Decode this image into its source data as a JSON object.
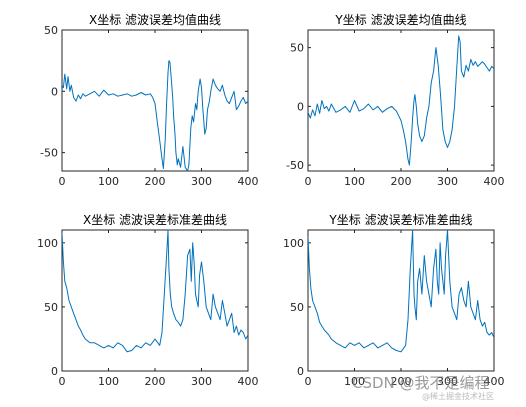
{
  "chart_data": [
    {
      "type": "line",
      "title": "X坐标 滤波误差均值曲线",
      "xlim": [
        0,
        400
      ],
      "ylim": [
        -65,
        50
      ],
      "xticks": [
        0,
        100,
        200,
        300,
        400
      ],
      "yticks": [
        -50,
        0,
        50
      ],
      "line_color": "#0072BD",
      "series": [
        {
          "x": [
            0,
            3,
            6,
            10,
            13,
            17,
            20,
            25,
            30,
            35,
            40,
            45,
            50,
            60,
            70,
            80,
            90,
            100,
            110,
            120,
            130,
            140,
            150,
            160,
            170,
            180,
            190,
            195,
            200,
            205,
            210,
            215,
            218,
            222,
            225,
            228,
            230,
            232,
            235,
            238,
            240,
            243,
            245,
            248,
            250,
            255,
            260,
            265,
            270,
            273,
            277,
            280,
            283,
            287,
            290,
            293,
            297,
            300,
            303,
            307,
            310,
            313,
            317,
            320,
            325,
            330,
            335,
            340,
            345,
            350,
            355,
            360,
            365,
            370,
            375,
            380,
            385,
            390,
            395,
            400
          ],
          "y": [
            5,
            3,
            14,
            2,
            12,
            0,
            5,
            -5,
            -8,
            -3,
            -6,
            -2,
            -4,
            -2,
            0,
            -4,
            1,
            -3,
            -2,
            -4,
            -3,
            -2,
            -4,
            -3,
            -1,
            -3,
            -2,
            -5,
            -10,
            -25,
            -40,
            -55,
            -63,
            -40,
            -10,
            15,
            25,
            24,
            10,
            -5,
            -20,
            -35,
            -50,
            -60,
            -55,
            -62,
            -45,
            -62,
            -65,
            -60,
            -30,
            -20,
            -25,
            -10,
            -15,
            0,
            10,
            3,
            -15,
            -35,
            -30,
            -15,
            -8,
            0,
            10,
            5,
            2,
            0,
            5,
            -3,
            -8,
            -10,
            -5,
            0,
            -15,
            -12,
            -8,
            -5,
            -10,
            -8
          ]
        }
      ]
    },
    {
      "type": "line",
      "title": "Y坐标 滤波误差均值曲线",
      "xlim": [
        0,
        400
      ],
      "ylim": [
        -55,
        65
      ],
      "xticks": [
        0,
        100,
        200,
        300,
        400
      ],
      "yticks": [
        -50,
        0,
        50
      ],
      "line_color": "#0072BD",
      "series": [
        {
          "x": [
            0,
            5,
            10,
            15,
            20,
            25,
            30,
            35,
            40,
            45,
            50,
            60,
            70,
            80,
            90,
            100,
            110,
            120,
            130,
            140,
            150,
            160,
            170,
            180,
            190,
            195,
            200,
            205,
            210,
            215,
            218,
            222,
            225,
            228,
            230,
            233,
            236,
            240,
            245,
            250,
            255,
            260,
            265,
            270,
            275,
            280,
            285,
            290,
            295,
            300,
            305,
            310,
            315,
            318,
            321,
            324,
            327,
            330,
            335,
            340,
            345,
            350,
            355,
            360,
            365,
            370,
            375,
            380,
            385,
            390,
            395,
            400
          ],
          "y": [
            -5,
            -10,
            -3,
            -8,
            2,
            -6,
            5,
            -2,
            0,
            -4,
            2,
            -5,
            -3,
            0,
            -5,
            5,
            -4,
            -2,
            2,
            -3,
            0,
            -5,
            -2,
            0,
            -4,
            -8,
            -12,
            -20,
            -30,
            -45,
            -50,
            -30,
            -10,
            5,
            10,
            0,
            -15,
            -25,
            -30,
            -25,
            -10,
            0,
            20,
            30,
            50,
            35,
            10,
            -20,
            -30,
            -35,
            -30,
            -20,
            0,
            20,
            40,
            60,
            55,
            30,
            25,
            35,
            30,
            40,
            35,
            38,
            34,
            36,
            38,
            36,
            33,
            30,
            34,
            32
          ]
        }
      ]
    },
    {
      "type": "line",
      "title": "X坐标 滤波误差标准差曲线",
      "xlim": [
        0,
        400
      ],
      "ylim": [
        0,
        110
      ],
      "xticks": [
        0,
        100,
        200,
        300,
        400
      ],
      "yticks": [
        0,
        50,
        100
      ],
      "line_color": "#0072BD",
      "series": [
        {
          "x": [
            0,
            3,
            6,
            10,
            15,
            20,
            25,
            30,
            35,
            40,
            45,
            50,
            60,
            70,
            80,
            90,
            100,
            110,
            120,
            130,
            140,
            150,
            160,
            170,
            180,
            190,
            200,
            210,
            215,
            220,
            225,
            228,
            230,
            233,
            236,
            240,
            245,
            250,
            255,
            260,
            265,
            270,
            275,
            278,
            281,
            284,
            287,
            290,
            293,
            296,
            300,
            305,
            310,
            315,
            320,
            325,
            330,
            335,
            340,
            345,
            350,
            355,
            360,
            365,
            370,
            375,
            380,
            385,
            390,
            395,
            400
          ],
          "y": [
            108,
            85,
            70,
            65,
            55,
            50,
            45,
            40,
            35,
            32,
            28,
            25,
            22,
            22,
            20,
            18,
            20,
            18,
            22,
            20,
            15,
            16,
            20,
            18,
            22,
            20,
            25,
            20,
            30,
            60,
            90,
            110,
            80,
            60,
            50,
            45,
            40,
            38,
            35,
            40,
            60,
            90,
            95,
            70,
            100,
            85,
            60,
            55,
            50,
            75,
            85,
            70,
            50,
            45,
            40,
            60,
            50,
            45,
            40,
            55,
            45,
            35,
            40,
            45,
            30,
            35,
            28,
            32,
            30,
            25,
            28
          ]
        }
      ]
    },
    {
      "type": "line",
      "title": "Y坐标 滤波误差标准差曲线",
      "xlim": [
        0,
        400
      ],
      "ylim": [
        0,
        110
      ],
      "xticks": [
        0,
        100,
        200,
        300,
        400
      ],
      "yticks": [
        0,
        50,
        100
      ],
      "line_color": "#0072BD",
      "series": [
        {
          "x": [
            0,
            3,
            6,
            10,
            15,
            20,
            25,
            30,
            35,
            40,
            45,
            50,
            60,
            70,
            80,
            90,
            100,
            110,
            120,
            130,
            140,
            150,
            160,
            170,
            180,
            190,
            200,
            210,
            215,
            220,
            225,
            228,
            230,
            233,
            236,
            240,
            245,
            250,
            255,
            260,
            265,
            270,
            275,
            278,
            281,
            284,
            287,
            290,
            293,
            296,
            300,
            305,
            310,
            315,
            320,
            325,
            330,
            335,
            340,
            345,
            350,
            355,
            360,
            365,
            370,
            375,
            380,
            385,
            390,
            395,
            400
          ],
          "y": [
            105,
            80,
            65,
            55,
            50,
            45,
            38,
            35,
            32,
            30,
            28,
            25,
            22,
            20,
            18,
            22,
            20,
            22,
            18,
            20,
            22,
            18,
            20,
            22,
            18,
            16,
            15,
            20,
            40,
            80,
            110,
            60,
            50,
            40,
            70,
            80,
            60,
            90,
            70,
            60,
            50,
            80,
            95,
            70,
            60,
            100,
            80,
            70,
            60,
            90,
            110,
            70,
            50,
            45,
            40,
            60,
            65,
            55,
            50,
            70,
            50,
            45,
            40,
            55,
            40,
            35,
            38,
            30,
            28,
            30,
            26
          ]
        }
      ]
    }
  ],
  "watermark": {
    "line1": "CSDN @我不是编程",
    "line2": "@稀土掘金技术社区"
  }
}
